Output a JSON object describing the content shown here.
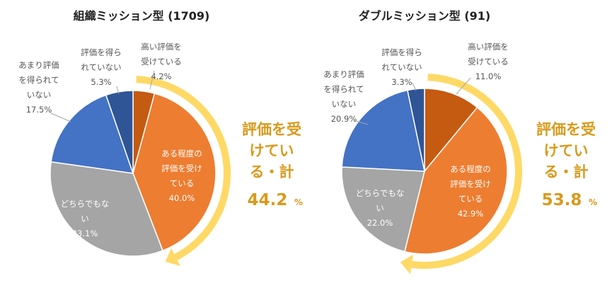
{
  "chart_data": [
    {
      "type": "pie",
      "title": "組織ミッション型 (1709)",
      "slices": [
        {
          "label_lines": [
            "高い評価を",
            "受けている"
          ],
          "value": 4.2,
          "value_label": "4.2%",
          "color": "#c55a11"
        },
        {
          "label_lines": [
            "ある程度の",
            "評価を受け",
            "ている"
          ],
          "value": 40.0,
          "value_label": "40.0%",
          "color": "#ed7d31"
        },
        {
          "label_lines": [
            "どちらでもな",
            "い"
          ],
          "value": 33.1,
          "value_label": "33.1%",
          "color": "#a5a5a5"
        },
        {
          "label_lines": [
            "あまり評価",
            "を得られて",
            "いない"
          ],
          "value": 17.5,
          "value_label": "17.5%",
          "color": "#4472c4"
        },
        {
          "label_lines": [
            "評価を得ら",
            "れていない"
          ],
          "value": 5.3,
          "value_label": "5.3%",
          "color": "#2f5597"
        }
      ],
      "summary": {
        "text_lines": [
          "評価を受",
          "けてい",
          "る・計"
        ],
        "value": "44.2",
        "unit": "%"
      }
    },
    {
      "type": "pie",
      "title": "ダブルミッション型 (91)",
      "slices": [
        {
          "label_lines": [
            "高い評価を",
            "受けている"
          ],
          "value": 11.0,
          "value_label": "11.0%",
          "color": "#c55a11"
        },
        {
          "label_lines": [
            "ある程度の",
            "評価を受け",
            "ている"
          ],
          "value": 42.9,
          "value_label": "42.9%",
          "color": "#ed7d31"
        },
        {
          "label_lines": [
            "どちらでもな",
            "い"
          ],
          "value": 22.0,
          "value_label": "22.0%",
          "color": "#a5a5a5"
        },
        {
          "label_lines": [
            "あまり評価",
            "を得られて",
            "いない"
          ],
          "value": 20.9,
          "value_label": "20.9%",
          "color": "#4472c4"
        },
        {
          "label_lines": [
            "評価を得ら",
            "れていない"
          ],
          "value": 3.3,
          "value_label": "3.3%",
          "color": "#2f5597"
        }
      ],
      "summary": {
        "text_lines": [
          "評価を受",
          "けてい",
          "る・計"
        ],
        "value": "53.8",
        "unit": "%"
      }
    }
  ],
  "colors": {
    "arc": "#ffd966",
    "accent_text": "#d99a1c",
    "leader": "#a6a6a6"
  }
}
